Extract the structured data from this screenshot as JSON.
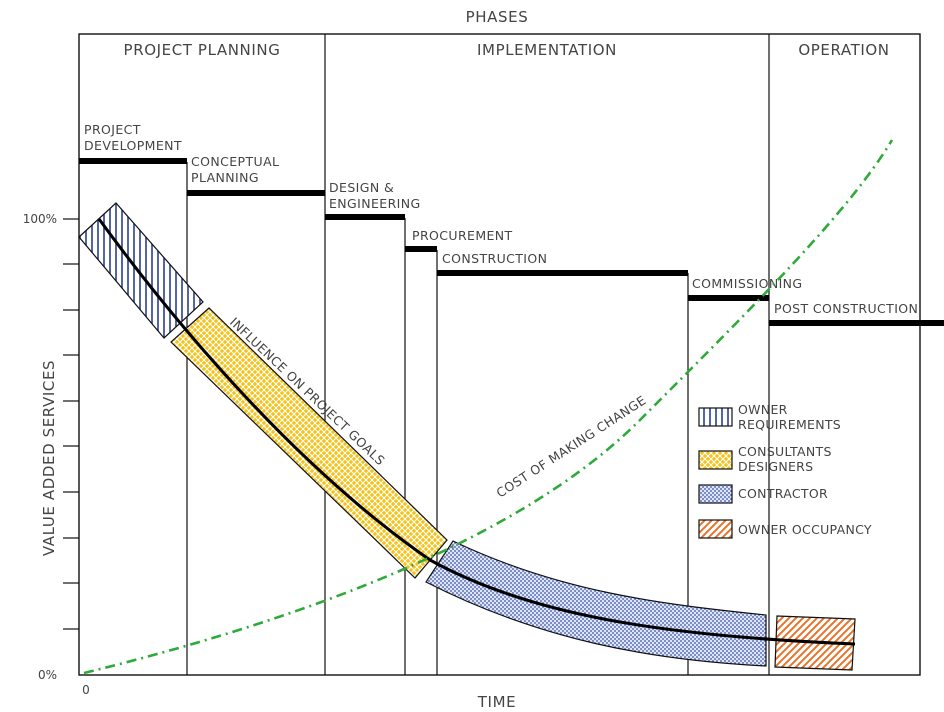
{
  "header": {
    "label": "PHASES"
  },
  "phases": [
    {
      "label": "PROJECT PLANNING"
    },
    {
      "label": "IMPLEMENTATION"
    },
    {
      "label": "OPERATION"
    }
  ],
  "stages": [
    {
      "line1": "PROJECT",
      "line2": "DEVELOPMENT"
    },
    {
      "line1": "CONCEPTUAL",
      "line2": "PLANNING"
    },
    {
      "line1": "DESIGN &",
      "line2": "ENGINEERING"
    },
    {
      "line1": "PROCUREMENT",
      "line2": ""
    },
    {
      "line1": "CONSTRUCTION",
      "line2": ""
    },
    {
      "line1": "COMMISSIONING",
      "line2": ""
    },
    {
      "line1": "POST CONSTRUCTION",
      "line2": ""
    }
  ],
  "axes": {
    "y_label": "VALUE ADDED SERVICES",
    "x_label": "TIME",
    "y_top": "100%",
    "y_bottom": "0%",
    "x_origin": "0"
  },
  "curves": {
    "influence": "INFLUENCE ON PROJECT GOALS",
    "cost": "COST OF MAKING CHANGE"
  },
  "legend": [
    {
      "line1": "OWNER",
      "line2": "REQUIREMENTS"
    },
    {
      "line1": "CONSULTANTS",
      "line2": "DESIGNERS"
    },
    {
      "line1": "CONTRACTOR",
      "line2": ""
    },
    {
      "line1": "OWNER OCCUPANCY",
      "line2": ""
    }
  ],
  "colors": {
    "owner": "#2a3f8f",
    "consultant": "#f2b400",
    "contractor": "#3551a8",
    "occupancy": "#e8732a",
    "cost_curve": "#2eaa3a",
    "ink": "#111111"
  }
}
